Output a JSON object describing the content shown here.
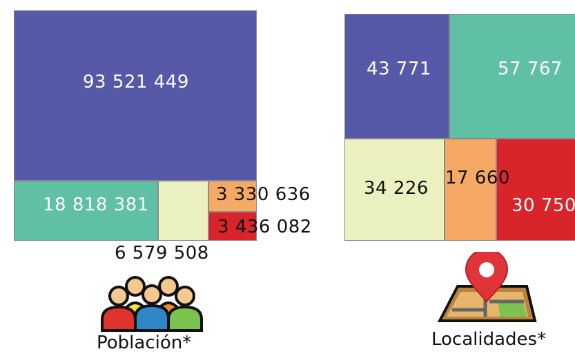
{
  "chart_data": [
    {
      "type": "treemap",
      "caption": "Población*",
      "values": [
        {
          "value": "93 521 449",
          "color": "#5559a8"
        },
        {
          "value": "18 818 381",
          "color": "#5fc0a5"
        },
        {
          "value": "6 579 508",
          "color": "#ebf0c1"
        },
        {
          "value": "3 330 636",
          "color": "#f6a965"
        },
        {
          "value": "3 436 082",
          "color": "#d9242b"
        }
      ]
    },
    {
      "type": "treemap",
      "caption": "Localidades*",
      "values": [
        {
          "value": "43 771",
          "color": "#5559a8"
        },
        {
          "value": "57 767",
          "color": "#5fc0a5"
        },
        {
          "value": "34 226",
          "color": "#ebf0c1"
        },
        {
          "value": "17 660",
          "color": "#f6a965"
        },
        {
          "value": "30 750",
          "color": "#d9242b"
        }
      ]
    }
  ],
  "icons": {
    "poblacion": "people-group-icon",
    "localidades": "map-location-pin-icon"
  }
}
